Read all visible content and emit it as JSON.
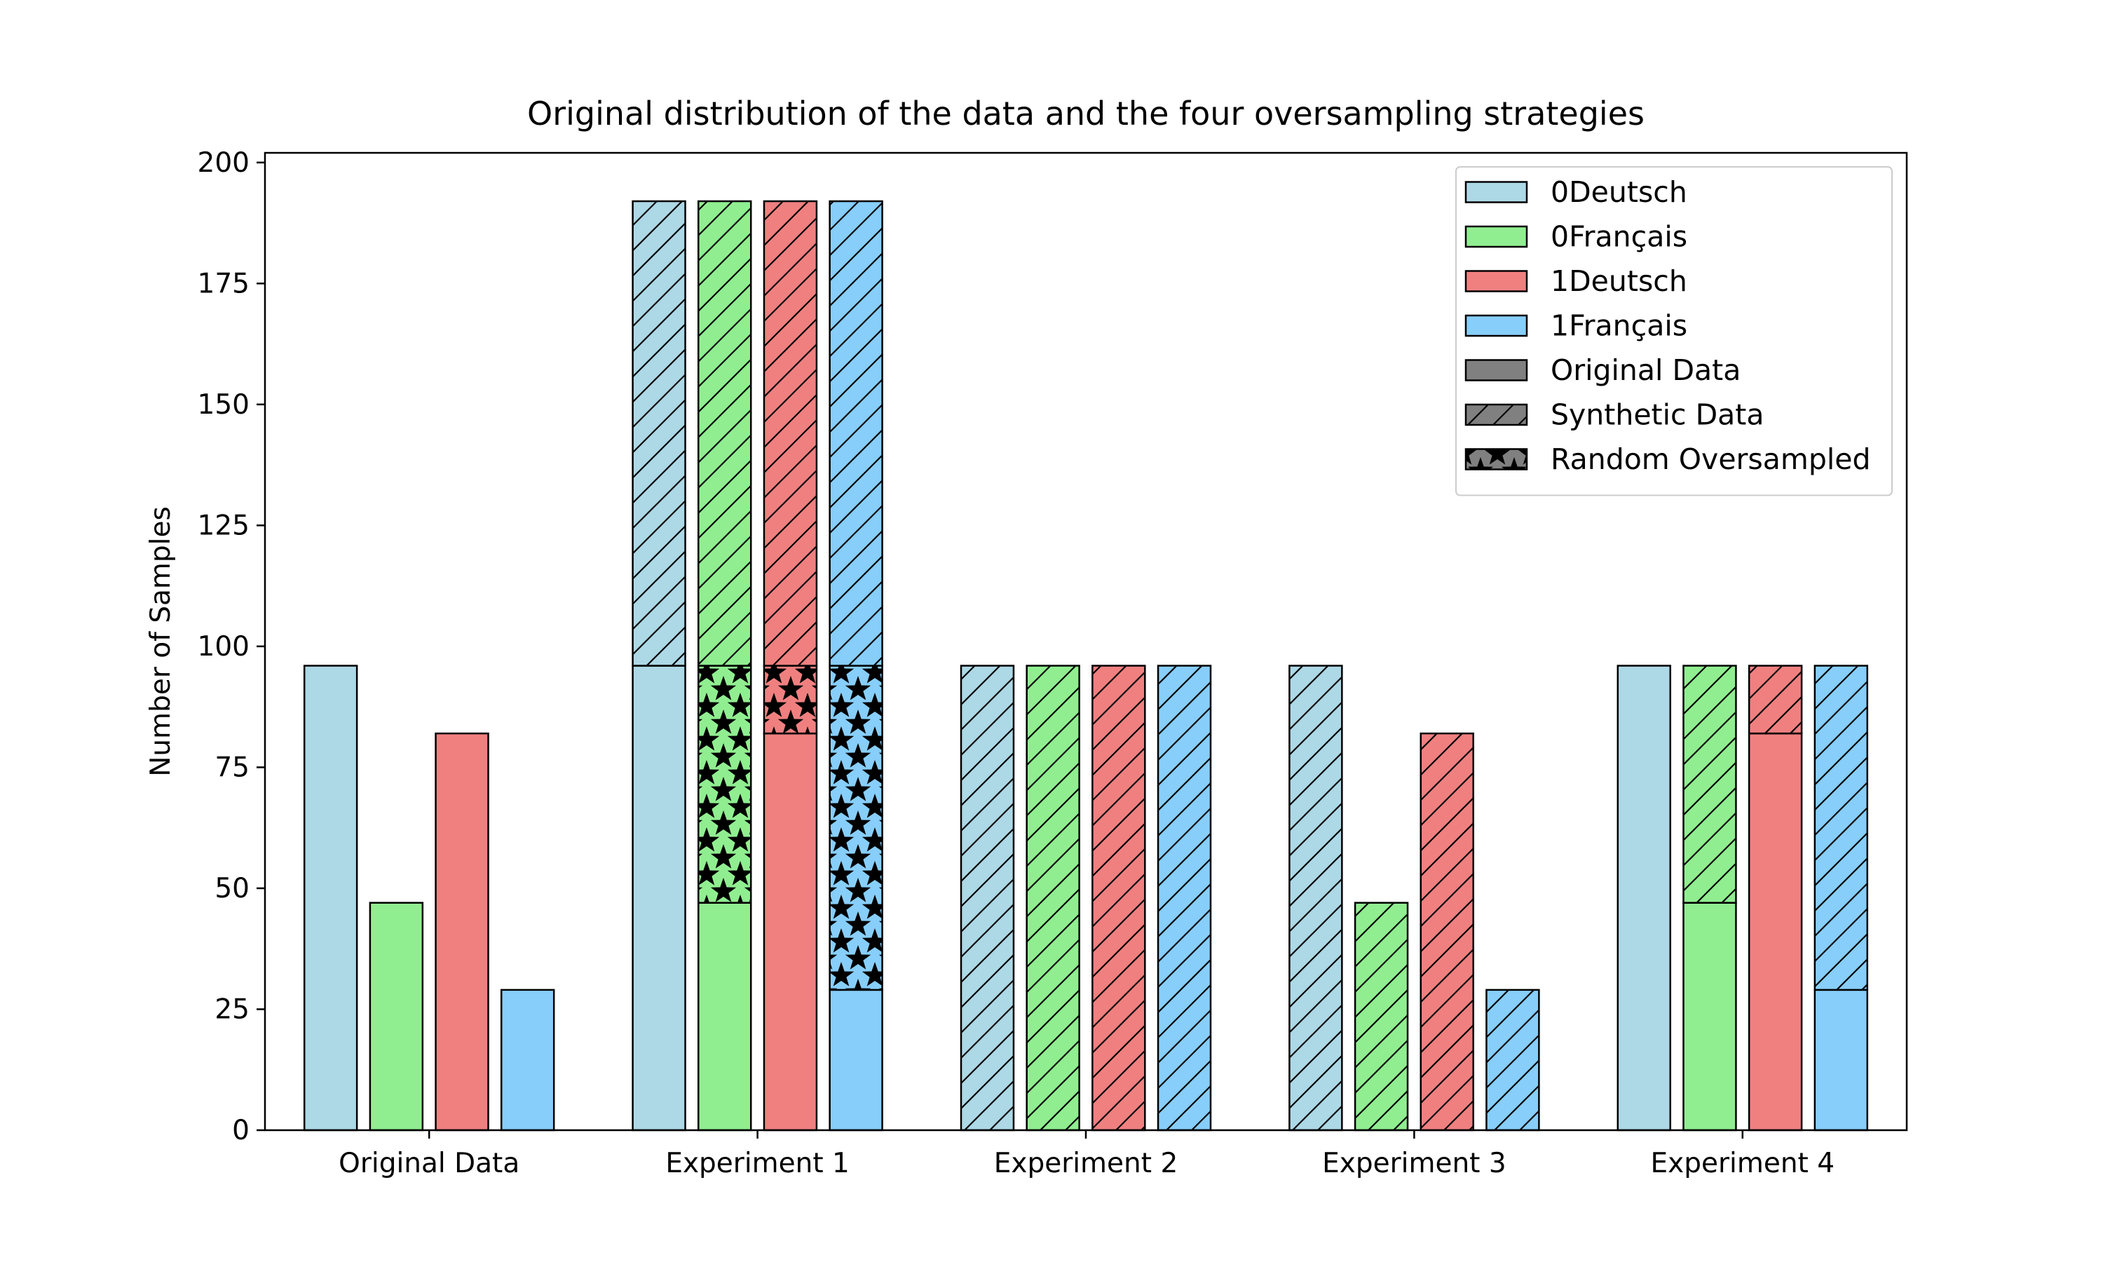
{
  "chart_data": {
    "type": "bar",
    "stacked": true,
    "title": "Original distribution of the data and the four oversampling strategies",
    "xlabel": "",
    "ylabel": "Number of Samples",
    "ylim": [
      0,
      202
    ],
    "yticks": [
      0,
      25,
      50,
      75,
      100,
      125,
      150,
      175,
      200
    ],
    "grid": false,
    "legend_position": "top-right",
    "categories": [
      "Original Data",
      "Experiment 1",
      "Experiment 2",
      "Experiment 3",
      "Experiment 4"
    ],
    "classes": [
      {
        "name": "0Deutsch",
        "color": "#add8e6"
      },
      {
        "name": "0Français",
        "color": "#90ee90"
      },
      {
        "name": "1Deutsch",
        "color": "#f08080"
      },
      {
        "name": "1Français",
        "color": "#87cefa"
      }
    ],
    "data_types": [
      {
        "name": "Original Data",
        "pattern": "solid"
      },
      {
        "name": "Synthetic Data",
        "pattern": "hatch"
      },
      {
        "name": "Random Oversampled",
        "pattern": "stars"
      }
    ],
    "groups": [
      {
        "category": "Original Data",
        "bars": [
          [
            {
              "type": "Original Data",
              "value": 96
            }
          ],
          [
            {
              "type": "Original Data",
              "value": 47
            }
          ],
          [
            {
              "type": "Original Data",
              "value": 82
            }
          ],
          [
            {
              "type": "Original Data",
              "value": 29
            }
          ]
        ]
      },
      {
        "category": "Experiment 1",
        "bars": [
          [
            {
              "type": "Original Data",
              "value": 96
            },
            {
              "type": "Synthetic Data",
              "value": 96
            }
          ],
          [
            {
              "type": "Original Data",
              "value": 47
            },
            {
              "type": "Random Oversampled",
              "value": 49
            },
            {
              "type": "Synthetic Data",
              "value": 96
            }
          ],
          [
            {
              "type": "Original Data",
              "value": 82
            },
            {
              "type": "Random Oversampled",
              "value": 14
            },
            {
              "type": "Synthetic Data",
              "value": 96
            }
          ],
          [
            {
              "type": "Original Data",
              "value": 29
            },
            {
              "type": "Random Oversampled",
              "value": 67
            },
            {
              "type": "Synthetic Data",
              "value": 96
            }
          ]
        ]
      },
      {
        "category": "Experiment 2",
        "bars": [
          [
            {
              "type": "Synthetic Data",
              "value": 96
            }
          ],
          [
            {
              "type": "Synthetic Data",
              "value": 96
            }
          ],
          [
            {
              "type": "Synthetic Data",
              "value": 96
            }
          ],
          [
            {
              "type": "Synthetic Data",
              "value": 96
            }
          ]
        ]
      },
      {
        "category": "Experiment 3",
        "bars": [
          [
            {
              "type": "Synthetic Data",
              "value": 96
            }
          ],
          [
            {
              "type": "Synthetic Data",
              "value": 47
            }
          ],
          [
            {
              "type": "Synthetic Data",
              "value": 82
            }
          ],
          [
            {
              "type": "Synthetic Data",
              "value": 29
            }
          ]
        ]
      },
      {
        "category": "Experiment 4",
        "bars": [
          [
            {
              "type": "Original Data",
              "value": 96
            }
          ],
          [
            {
              "type": "Original Data",
              "value": 47
            },
            {
              "type": "Synthetic Data",
              "value": 49
            }
          ],
          [
            {
              "type": "Original Data",
              "value": 82
            },
            {
              "type": "Synthetic Data",
              "value": 14
            }
          ],
          [
            {
              "type": "Original Data",
              "value": 29
            },
            {
              "type": "Synthetic Data",
              "value": 67
            }
          ]
        ]
      }
    ]
  }
}
